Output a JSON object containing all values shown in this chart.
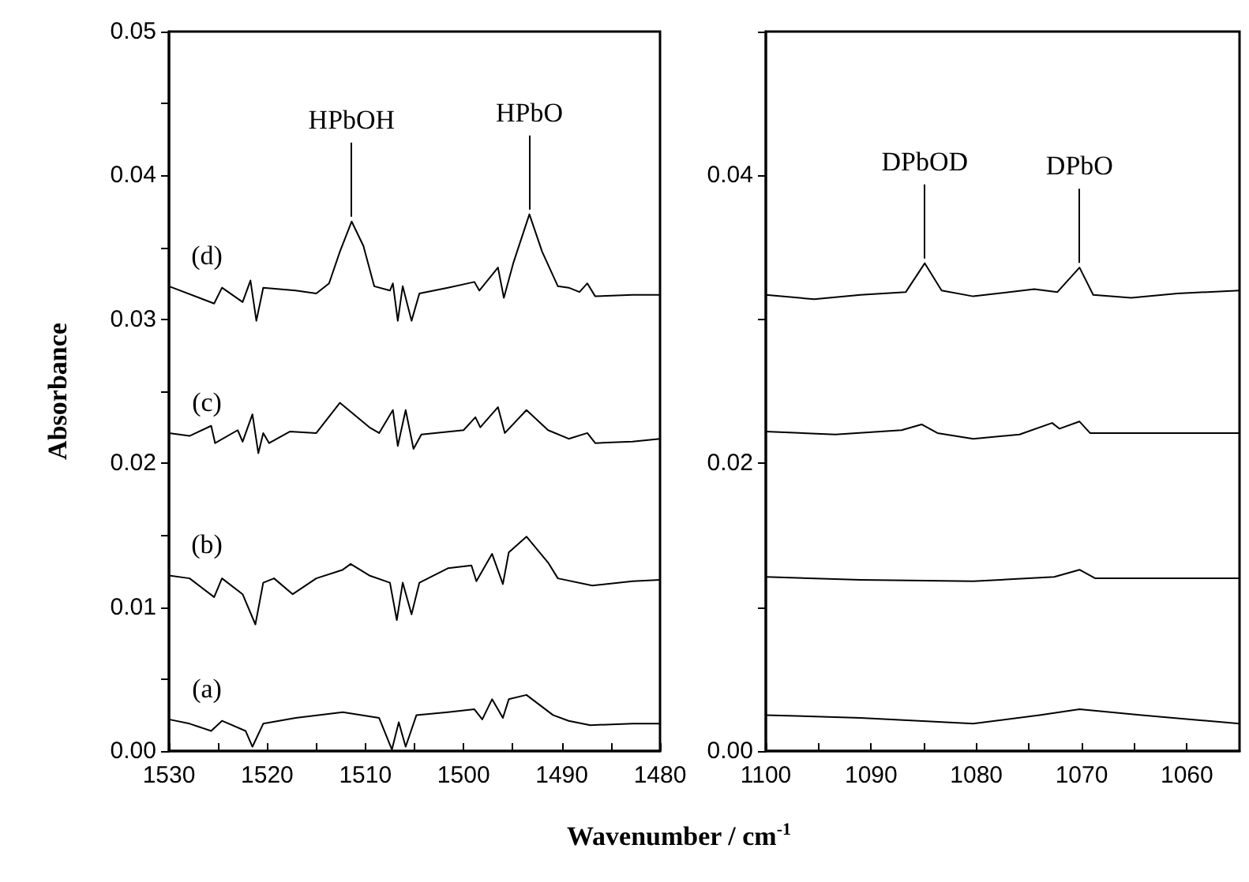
{
  "chart_data": [
    {
      "type": "line",
      "ylabel": "Absorbance",
      "xlabel": "Wavenumber / cm$^{-1}$",
      "xlim": [
        1530,
        1480
      ],
      "ylim": [
        0,
        0.05
      ],
      "xticks": [
        {
          "value": 1530,
          "label": "1530"
        },
        {
          "value": 1525,
          "label": null
        },
        {
          "value": 1520,
          "label": "1520"
        },
        {
          "value": 1515,
          "label": null
        },
        {
          "value": 1510,
          "label": "1510"
        },
        {
          "value": 1505,
          "label": null
        },
        {
          "value": 1500,
          "label": "1500"
        },
        {
          "value": 1495,
          "label": null
        },
        {
          "value": 1490,
          "label": "1490"
        },
        {
          "value": 1485,
          "label": null
        },
        {
          "value": 1480,
          "label": "1480"
        }
      ],
      "yticks": [
        {
          "value": 0,
          "label": "0.00"
        },
        {
          "value": 0.005,
          "label": null
        },
        {
          "value": 0.01,
          "label": "0.01"
        },
        {
          "value": 0.015,
          "label": null
        },
        {
          "value": 0.02,
          "label": "0.02"
        },
        {
          "value": 0.025,
          "label": null
        },
        {
          "value": 0.03,
          "label": "0.03"
        },
        {
          "value": 0.035,
          "label": null
        },
        {
          "value": 0.04,
          "label": "0.04"
        },
        {
          "value": 0.045,
          "label": null
        },
        {
          "value": 0.05,
          "label": "0.05"
        }
      ],
      "annotations": [
        {
          "text": "HPbOH",
          "x": 1511.4,
          "y": 0.0368
        },
        {
          "text": "HPbO",
          "x": 1493.3,
          "y": 0.0373
        }
      ],
      "grid": false,
      "legend": false,
      "marker": "none",
      "line_style": "solid",
      "series": [
        {
          "name": "(d)",
          "color": "#000000",
          "x": [
            1530,
            1525.4,
            1524.6,
            1522.5,
            1521.7,
            1521.1,
            1520.4,
            1517.1,
            1515.0,
            1513.7,
            1512.6,
            1511.4,
            1510.2,
            1509.1,
            1507.5,
            1507.2,
            1506.7,
            1506.2,
            1505.3,
            1504.5,
            1501.6,
            1498.9,
            1498.4,
            1496.5,
            1495.9,
            1494.9,
            1493.3,
            1492.0,
            1490.4,
            1489.3,
            1488.2,
            1487.4,
            1486.6,
            1482.8,
            1480
          ],
          "values": [
            0.0323,
            0.0311,
            0.0322,
            0.0312,
            0.0327,
            0.0299,
            0.0322,
            0.032,
            0.0318,
            0.0325,
            0.0347,
            0.0368,
            0.0351,
            0.0323,
            0.032,
            0.0325,
            0.0299,
            0.0323,
            0.0299,
            0.0318,
            0.0322,
            0.0326,
            0.032,
            0.0336,
            0.0315,
            0.034,
            0.0373,
            0.0347,
            0.0323,
            0.0322,
            0.0319,
            0.0325,
            0.0316,
            0.0317,
            0.0317
          ]
        },
        {
          "name": "(c)",
          "color": "#000000",
          "x": [
            1530,
            1527.9,
            1525.7,
            1525.3,
            1523.0,
            1522.5,
            1521.5,
            1520.9,
            1520.4,
            1519.8,
            1517.7,
            1515.0,
            1512.6,
            1509.6,
            1508.6,
            1507.2,
            1506.7,
            1505.9,
            1505.1,
            1504.3,
            1500.0,
            1498.8,
            1498.3,
            1496.5,
            1495.8,
            1493.6,
            1491.4,
            1489.3,
            1487.4,
            1486.6,
            1482.8,
            1480
          ],
          "values": [
            0.0221,
            0.0219,
            0.0226,
            0.0214,
            0.0223,
            0.0215,
            0.0234,
            0.0207,
            0.0221,
            0.0214,
            0.0222,
            0.0221,
            0.0242,
            0.0225,
            0.0221,
            0.0237,
            0.0212,
            0.0237,
            0.021,
            0.022,
            0.0223,
            0.0232,
            0.0225,
            0.0239,
            0.0221,
            0.0237,
            0.0223,
            0.0217,
            0.0221,
            0.0214,
            0.0215,
            0.0217
          ]
        },
        {
          "name": "(b)",
          "color": "#000000",
          "x": [
            1530,
            1527.9,
            1525.4,
            1524.6,
            1522.5,
            1521.2,
            1520.4,
            1519.3,
            1517.4,
            1515.0,
            1512.3,
            1511.5,
            1509.6,
            1507.5,
            1506.8,
            1506.2,
            1505.3,
            1504.5,
            1501.6,
            1499.2,
            1498.7,
            1497.1,
            1496.0,
            1495.4,
            1493.6,
            1491.4,
            1490.4,
            1486.9,
            1482.8,
            1480
          ],
          "values": [
            0.0122,
            0.012,
            0.0107,
            0.012,
            0.0109,
            0.0088,
            0.0117,
            0.012,
            0.0109,
            0.012,
            0.0126,
            0.013,
            0.0122,
            0.0117,
            0.0091,
            0.0117,
            0.0095,
            0.0117,
            0.0127,
            0.0129,
            0.0118,
            0.0137,
            0.0116,
            0.0138,
            0.0149,
            0.0131,
            0.012,
            0.0115,
            0.0118,
            0.0119
          ]
        },
        {
          "name": "(a)",
          "color": "#000000",
          "x": [
            1530,
            1527.9,
            1525.7,
            1524.6,
            1522.2,
            1521.5,
            1520.4,
            1517.1,
            1512.3,
            1508.6,
            1507.3,
            1506.6,
            1505.9,
            1504.8,
            1501.6,
            1498.9,
            1498.1,
            1497.1,
            1496.0,
            1495.4,
            1493.6,
            1490.9,
            1489.3,
            1487.1,
            1482.8,
            1480
          ],
          "values": [
            0.0022,
            0.0019,
            0.0014,
            0.0021,
            0.0014,
            0.0003,
            0.0019,
            0.0023,
            0.0027,
            0.0023,
            0.0001,
            0.002,
            0.0003,
            0.0025,
            0.0027,
            0.0029,
            0.0022,
            0.0036,
            0.0023,
            0.0036,
            0.0039,
            0.0025,
            0.0021,
            0.0018,
            0.0019,
            0.0019
          ]
        }
      ]
    },
    {
      "type": "line",
      "xlim": [
        1100,
        1055
      ],
      "ylim": [
        0,
        0.05
      ],
      "xticks": [
        {
          "value": 1100,
          "label": "1100"
        },
        {
          "value": 1095,
          "label": null
        },
        {
          "value": 1090,
          "label": "1090"
        },
        {
          "value": 1085,
          "label": null
        },
        {
          "value": 1080,
          "label": "1080"
        },
        {
          "value": 1075,
          "label": null
        },
        {
          "value": 1070,
          "label": "1070"
        },
        {
          "value": 1065,
          "label": null
        },
        {
          "value": 1060,
          "label": "1060"
        }
      ],
      "yticks": [
        {
          "value": 0,
          "label": "0.00"
        },
        {
          "value": 0.01,
          "label": null
        },
        {
          "value": 0.02,
          "label": "0.02"
        },
        {
          "value": 0.03,
          "label": null
        },
        {
          "value": 0.04,
          "label": "0.04"
        },
        {
          "value": 0.05,
          "label": null
        }
      ],
      "annotations": [
        {
          "text": "DPbOD",
          "x": 1084.9,
          "y": 0.0339
        },
        {
          "text": "DPbO",
          "x": 1070.2,
          "y": 0.0336
        }
      ],
      "grid": false,
      "legend": false,
      "marker": "none",
      "line_style": "solid",
      "series": [
        {
          "color": "#000000",
          "x": [
            1100,
            1095.4,
            1091.0,
            1086.7,
            1084.9,
            1083.3,
            1080.3,
            1074.5,
            1072.3,
            1070.2,
            1068.9,
            1065.3,
            1060.9,
            1055
          ],
          "values": [
            0.0317,
            0.0314,
            0.0317,
            0.0319,
            0.0339,
            0.032,
            0.0316,
            0.0321,
            0.0319,
            0.0336,
            0.0317,
            0.0315,
            0.0318,
            0.032
          ]
        },
        {
          "color": "#000000",
          "x": [
            1100,
            1093.4,
            1087.1,
            1085.2,
            1083.7,
            1080.3,
            1075.9,
            1072.8,
            1072.1,
            1070.2,
            1069.2,
            1064.3,
            1055
          ],
          "values": [
            0.0222,
            0.022,
            0.0223,
            0.0227,
            0.0221,
            0.0217,
            0.022,
            0.0228,
            0.0224,
            0.0229,
            0.0221,
            0.0221,
            0.0221
          ]
        },
        {
          "color": "#000000",
          "x": [
            1100,
            1091.0,
            1080.3,
            1072.6,
            1070.2,
            1068.7,
            1055
          ],
          "values": [
            0.0121,
            0.0119,
            0.0118,
            0.0121,
            0.0126,
            0.012,
            0.012
          ]
        },
        {
          "color": "#000000",
          "x": [
            1100,
            1091.0,
            1080.3,
            1074.0,
            1070.2,
            1064.3,
            1055
          ],
          "values": [
            0.0025,
            0.0023,
            0.0019,
            0.0025,
            0.0029,
            0.0025,
            0.0019
          ]
        }
      ]
    }
  ]
}
